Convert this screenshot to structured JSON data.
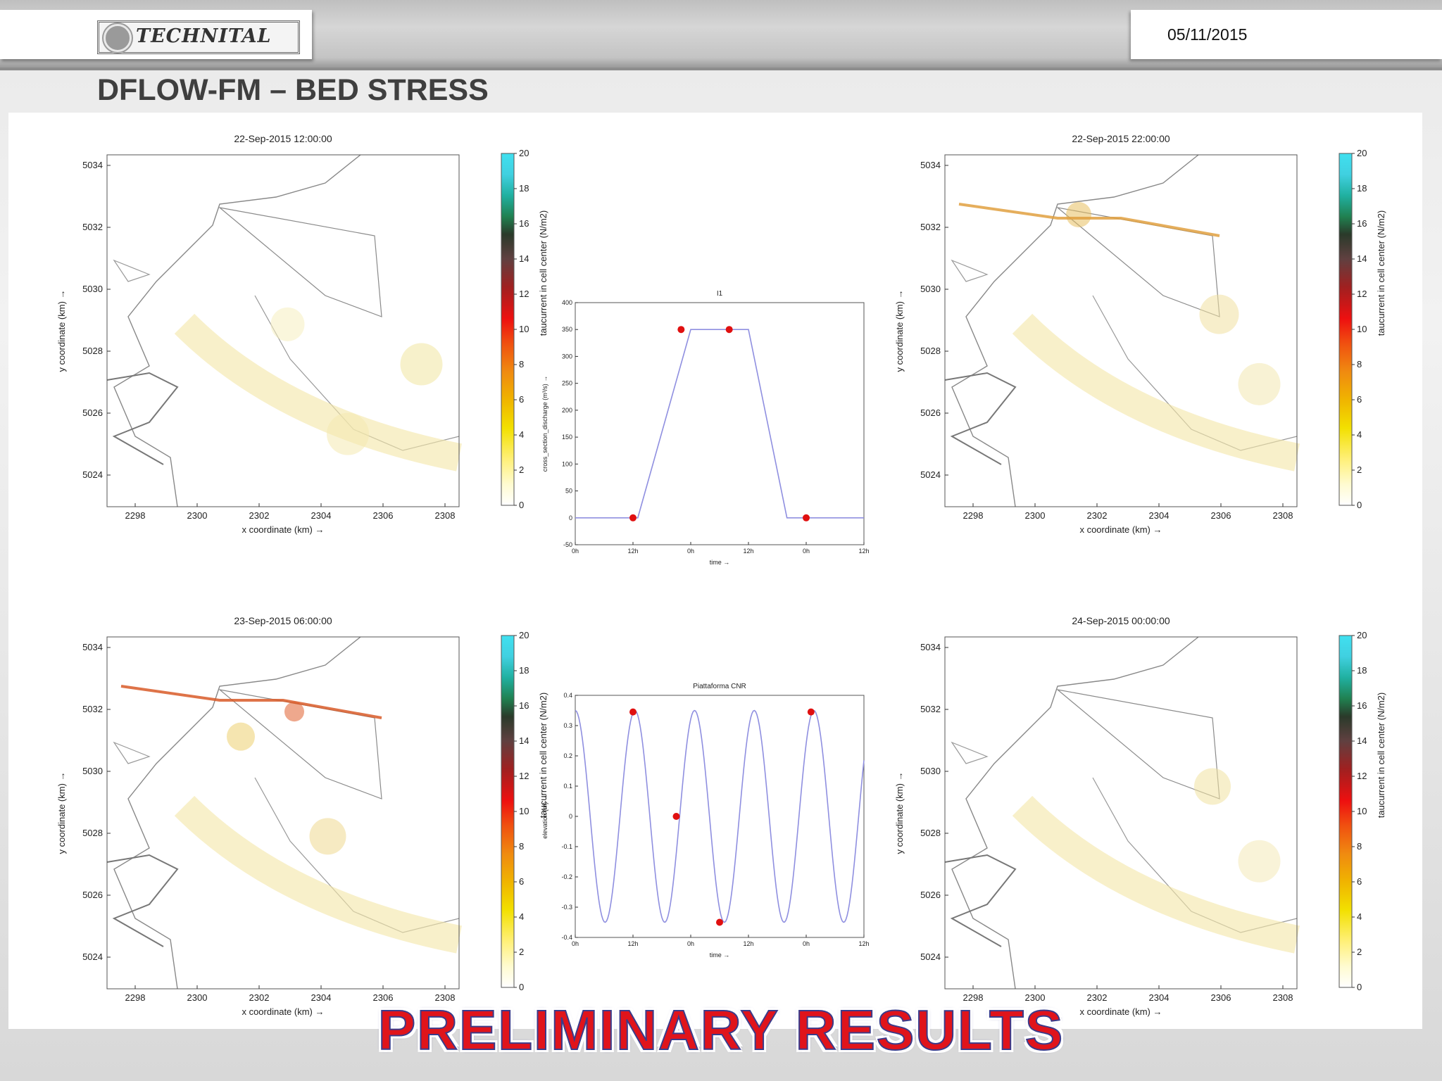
{
  "header": {
    "logo_text": "TECHNITAL",
    "date": "05/11/2015",
    "title": "DFLOW-FM – BED STRESS"
  },
  "maps": {
    "xlabel": "x coordinate (km) →",
    "ylabel": "y coordinate (km) →",
    "x_ticks": [
      "2298",
      "2300",
      "2302",
      "2304",
      "2306",
      "2308"
    ],
    "y_ticks": [
      "5034",
      "5032",
      "5030",
      "5028",
      "5026",
      "5024"
    ],
    "colorbar_label": "taucurrent in cell center (N/m2)",
    "colorbar_ticks": [
      "20",
      "18",
      "16",
      "14",
      "12",
      "10",
      "8",
      "6",
      "4",
      "2",
      "0"
    ],
    "panels": [
      {
        "title": "22-Sep-2015 12:00:00"
      },
      {
        "title": "22-Sep-2015 22:00:00"
      },
      {
        "title": "23-Sep-2015 06:00:00"
      },
      {
        "title": "24-Sep-2015 00:00:00"
      }
    ]
  },
  "chart_data": [
    {
      "type": "line",
      "title": "I1",
      "xlabel": "time →",
      "ylabel": "cross_section_discharge (m³/s) →",
      "x_ticks": [
        "0h",
        "12h",
        "0h",
        "12h",
        "0h",
        "12h"
      ],
      "ylim": [
        -50,
        400
      ],
      "y_ticks": [
        -50,
        0,
        50,
        100,
        150,
        200,
        250,
        300,
        350,
        400
      ],
      "x_hours": [
        0,
        10,
        13,
        24,
        30,
        36,
        44,
        52,
        60
      ],
      "values": [
        0,
        0,
        0,
        350,
        350,
        350,
        0,
        0,
        0
      ],
      "markers": [
        {
          "x_hours": 12,
          "y": 0
        },
        {
          "x_hours": 22,
          "y": 350
        },
        {
          "x_hours": 32,
          "y": 350
        },
        {
          "x_hours": 48,
          "y": 0
        }
      ],
      "line_color": "#8f8fe0",
      "marker_color": "#e01010"
    },
    {
      "type": "line",
      "title": "Piattaforma CNR",
      "xlabel": "time →",
      "ylabel": "elevation (m) →",
      "x_ticks": [
        "0h",
        "12h",
        "0h",
        "12h",
        "0h",
        "12h"
      ],
      "ylim": [
        -0.4,
        0.4
      ],
      "y_ticks": [
        -0.4,
        -0.3,
        -0.2,
        -0.1,
        0,
        0.1,
        0.2,
        0.3,
        0.4
      ],
      "amplitude": 0.35,
      "period_hours": 12.4,
      "markers": [
        {
          "x_hours": 12,
          "y": 0.345
        },
        {
          "x_hours": 21,
          "y": 0
        },
        {
          "x_hours": 30,
          "y": -0.35
        },
        {
          "x_hours": 49,
          "y": 0.345
        }
      ],
      "line_color": "#8f8fe0",
      "marker_color": "#e01010"
    }
  ],
  "footer": {
    "banner": "PRELIMINARY RESULTS"
  }
}
